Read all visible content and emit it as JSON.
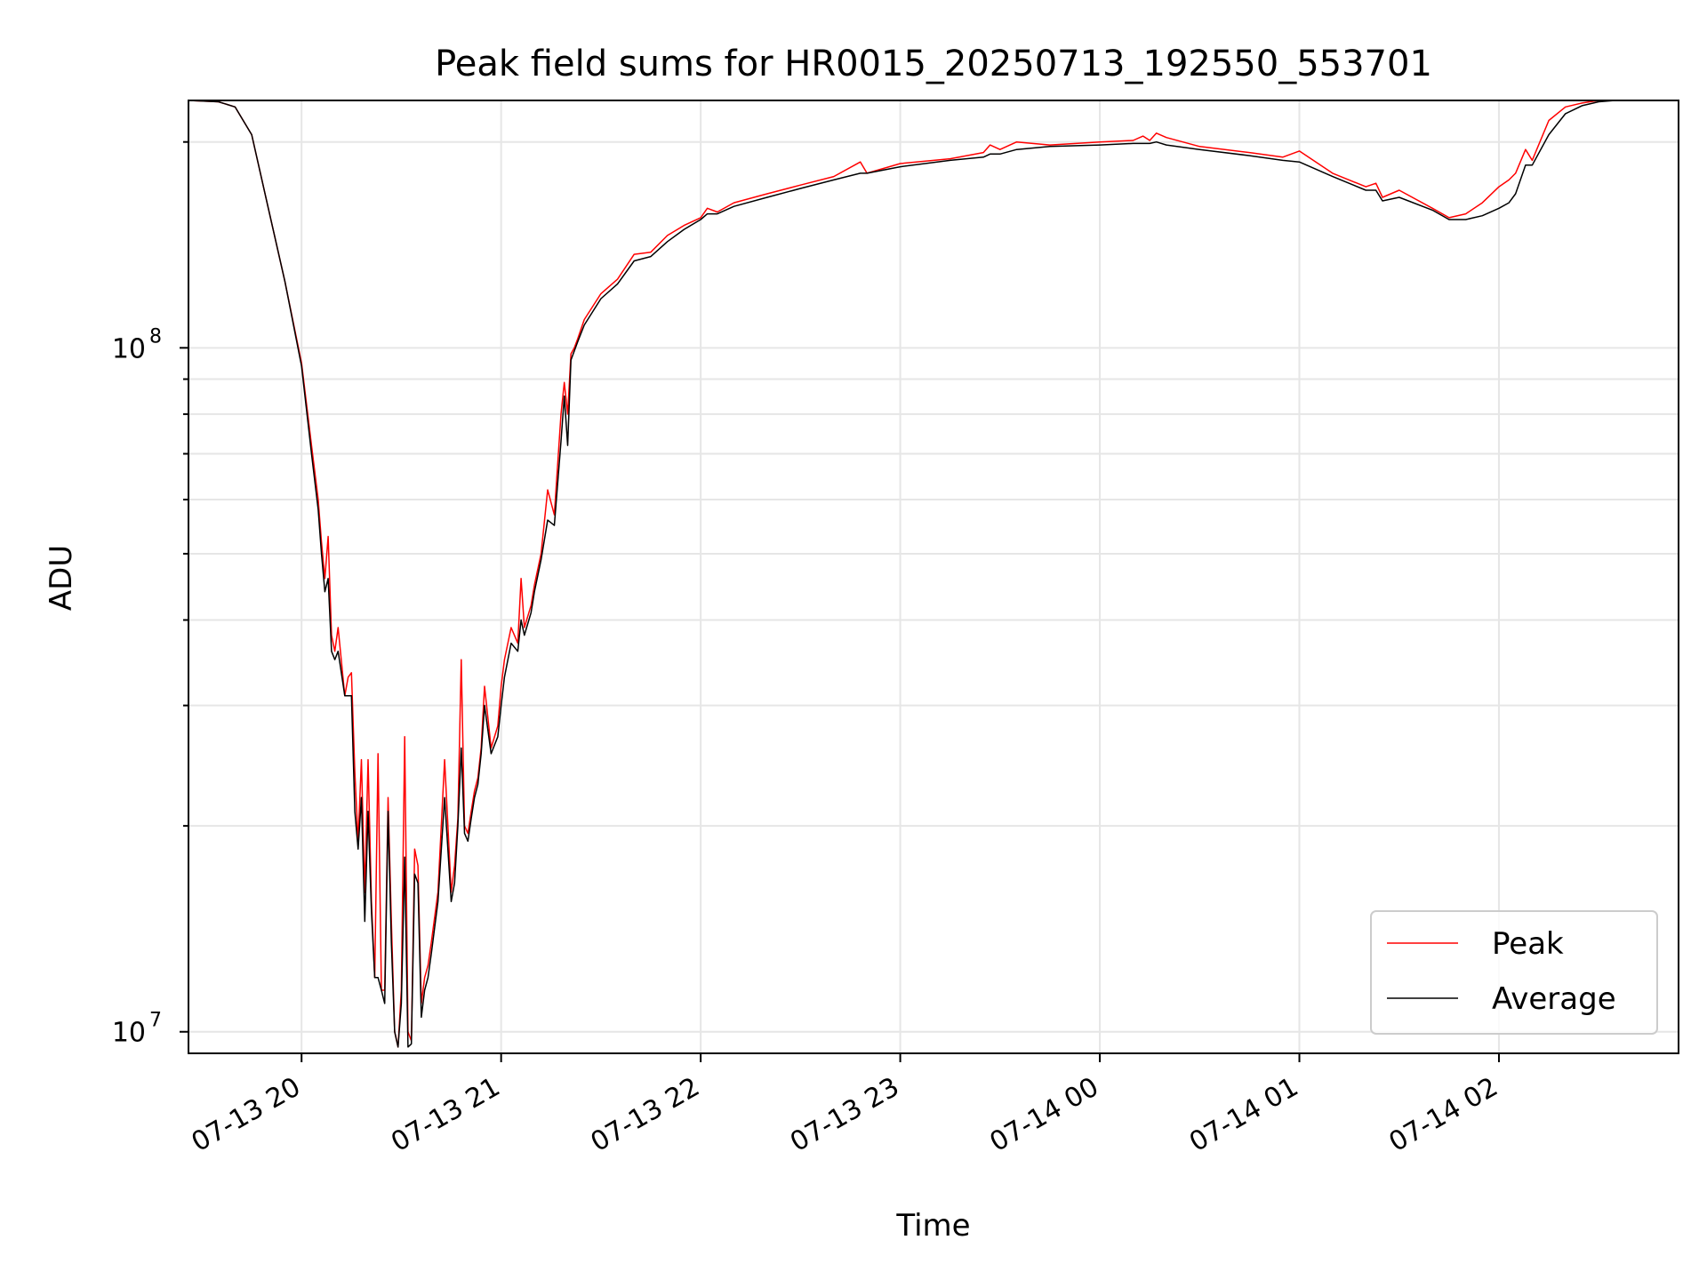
{
  "chart_data": {
    "type": "line",
    "title": "Peak field sums for HR0015_20250713_192550_553701",
    "xlabel": "Time",
    "ylabel": "ADU",
    "yscale": "log",
    "grid": true,
    "legend_position": "bottom-right",
    "xlim": [
      "2025-07-13 19:26",
      "2025-07-14 02:54"
    ],
    "ylim": [
      9300000,
      230000000
    ],
    "x_ticks": [
      "2025-07-13 20:00",
      "2025-07-13 21:00",
      "2025-07-13 22:00",
      "2025-07-13 23:00",
      "2025-07-14 00:00",
      "2025-07-14 01:00",
      "2025-07-14 02:00"
    ],
    "x_tick_labels": [
      "07-13 20",
      "07-13 21",
      "07-13 22",
      "07-13 23",
      "07-14 00",
      "07-14 01",
      "07-14 02"
    ],
    "y_ticks": [
      10000000,
      100000000
    ],
    "y_tick_labels": [
      {
        "base": "10",
        "exp": "7"
      },
      {
        "base": "10",
        "exp": "8"
      }
    ],
    "series": [
      {
        "name": "Peak",
        "color": "#ff0000",
        "x": [
          "2025-07-13 19:26",
          "2025-07-13 19:35",
          "2025-07-13 19:40",
          "2025-07-13 19:45",
          "2025-07-13 19:50",
          "2025-07-13 19:55",
          "2025-07-13 20:00",
          "2025-07-13 20:03",
          "2025-07-13 20:05",
          "2025-07-13 20:06",
          "2025-07-13 20:07",
          "2025-07-13 20:08",
          "2025-07-13 20:09",
          "2025-07-13 20:10",
          "2025-07-13 20:11",
          "2025-07-13 20:13",
          "2025-07-13 20:14",
          "2025-07-13 20:15",
          "2025-07-13 20:16",
          "2025-07-13 20:17",
          "2025-07-13 20:18",
          "2025-07-13 20:19",
          "2025-07-13 20:20",
          "2025-07-13 20:21",
          "2025-07-13 20:22",
          "2025-07-13 20:23",
          "2025-07-13 20:24",
          "2025-07-13 20:25",
          "2025-07-13 20:26",
          "2025-07-13 20:27",
          "2025-07-13 20:28",
          "2025-07-13 20:29",
          "2025-07-13 20:30",
          "2025-07-13 20:31",
          "2025-07-13 20:32",
          "2025-07-13 20:33",
          "2025-07-13 20:34",
          "2025-07-13 20:35",
          "2025-07-13 20:36",
          "2025-07-13 20:37",
          "2025-07-13 20:38",
          "2025-07-13 20:39",
          "2025-07-13 20:41",
          "2025-07-13 20:43",
          "2025-07-13 20:45",
          "2025-07-13 20:46",
          "2025-07-13 20:47",
          "2025-07-13 20:48",
          "2025-07-13 20:49",
          "2025-07-13 20:50",
          "2025-07-13 20:51",
          "2025-07-13 20:52",
          "2025-07-13 20:53",
          "2025-07-13 20:54",
          "2025-07-13 20:55",
          "2025-07-13 20:57",
          "2025-07-13 20:59",
          "2025-07-13 21:00",
          "2025-07-13 21:01",
          "2025-07-13 21:03",
          "2025-07-13 21:05",
          "2025-07-13 21:06",
          "2025-07-13 21:07",
          "2025-07-13 21:09",
          "2025-07-13 21:10",
          "2025-07-13 21:12",
          "2025-07-13 21:14",
          "2025-07-13 21:16",
          "2025-07-13 21:18",
          "2025-07-13 21:19",
          "2025-07-13 21:20",
          "2025-07-13 21:21",
          "2025-07-13 21:22",
          "2025-07-13 21:23",
          "2025-07-13 21:25",
          "2025-07-13 21:30",
          "2025-07-13 21:35",
          "2025-07-13 21:40",
          "2025-07-13 21:45",
          "2025-07-13 21:50",
          "2025-07-13 21:55",
          "2025-07-13 22:00",
          "2025-07-13 22:02",
          "2025-07-13 22:05",
          "2025-07-13 22:10",
          "2025-07-13 22:20",
          "2025-07-13 22:30",
          "2025-07-13 22:40",
          "2025-07-13 22:48",
          "2025-07-13 22:50",
          "2025-07-13 23:00",
          "2025-07-13 23:15",
          "2025-07-13 23:25",
          "2025-07-13 23:27",
          "2025-07-13 23:30",
          "2025-07-13 23:35",
          "2025-07-13 23:45",
          "2025-07-14 00:00",
          "2025-07-14 00:10",
          "2025-07-14 00:13",
          "2025-07-14 00:15",
          "2025-07-14 00:17",
          "2025-07-14 00:20",
          "2025-07-14 00:30",
          "2025-07-14 00:45",
          "2025-07-14 00:55",
          "2025-07-14 01:00",
          "2025-07-14 01:10",
          "2025-07-14 01:20",
          "2025-07-14 01:23",
          "2025-07-14 01:25",
          "2025-07-14 01:30",
          "2025-07-14 01:40",
          "2025-07-14 01:45",
          "2025-07-14 01:50",
          "2025-07-14 01:55",
          "2025-07-14 02:00",
          "2025-07-14 02:03",
          "2025-07-14 02:05",
          "2025-07-14 02:08",
          "2025-07-14 02:10",
          "2025-07-14 02:15",
          "2025-07-14 02:20",
          "2025-07-14 02:25",
          "2025-07-14 02:30",
          "2025-07-14 02:35",
          "2025-07-14 02:40",
          "2025-07-14 02:45",
          "2025-07-14 02:54"
        ],
        "y": [
          230000000,
          229000000,
          225000000,
          205000000,
          160000000,
          125000000,
          95000000,
          72000000,
          60000000,
          52000000,
          46000000,
          53000000,
          38000000,
          36000000,
          39000000,
          31000000,
          33000000,
          33500000,
          24000000,
          19000000,
          25000000,
          16000000,
          25000000,
          15500000,
          12000000,
          25500000,
          11500000,
          11500000,
          22000000,
          14500000,
          10000000,
          9500000,
          11500000,
          27000000,
          10000000,
          9700000,
          18500000,
          17500000,
          11000000,
          12000000,
          12500000,
          13500000,
          16000000,
          25000000,
          16000000,
          17500000,
          20500000,
          35000000,
          20000000,
          19500000,
          21000000,
          22500000,
          23500000,
          26000000,
          32000000,
          26000000,
          28000000,
          32000000,
          35000000,
          39000000,
          37000000,
          46000000,
          39000000,
          42000000,
          45000000,
          50000000,
          62000000,
          57000000,
          80000000,
          89000000,
          80000000,
          98000000,
          100000000,
          103000000,
          110000000,
          120000000,
          126000000,
          137000000,
          138000000,
          146000000,
          151000000,
          155000000,
          160000000,
          158000000,
          163000000,
          168000000,
          173000000,
          178000000,
          187000000,
          180000000,
          186000000,
          189000000,
          193000000,
          198000000,
          195000000,
          200000000,
          198000000,
          200000000,
          201000000,
          204000000,
          201000000,
          206000000,
          203000000,
          197000000,
          193000000,
          190000000,
          194000000,
          180000000,
          172000000,
          174000000,
          166000000,
          170000000,
          160000000,
          155000000,
          157000000,
          163000000,
          172000000,
          176000000,
          180000000,
          195000000,
          188000000,
          215000000,
          225000000,
          228000000,
          230000000,
          231000000,
          231000000,
          232000000,
          232000000
        ]
      },
      {
        "name": "Average",
        "color": "#000000",
        "x": [
          "2025-07-13 19:26",
          "2025-07-13 19:35",
          "2025-07-13 19:40",
          "2025-07-13 19:45",
          "2025-07-13 19:50",
          "2025-07-13 19:55",
          "2025-07-13 20:00",
          "2025-07-13 20:03",
          "2025-07-13 20:05",
          "2025-07-13 20:06",
          "2025-07-13 20:07",
          "2025-07-13 20:08",
          "2025-07-13 20:09",
          "2025-07-13 20:10",
          "2025-07-13 20:11",
          "2025-07-13 20:13",
          "2025-07-13 20:14",
          "2025-07-13 20:15",
          "2025-07-13 20:16",
          "2025-07-13 20:17",
          "2025-07-13 20:18",
          "2025-07-13 20:19",
          "2025-07-13 20:20",
          "2025-07-13 20:21",
          "2025-07-13 20:22",
          "2025-07-13 20:23",
          "2025-07-13 20:24",
          "2025-07-13 20:25",
          "2025-07-13 20:26",
          "2025-07-13 20:27",
          "2025-07-13 20:28",
          "2025-07-13 20:29",
          "2025-07-13 20:30",
          "2025-07-13 20:31",
          "2025-07-13 20:32",
          "2025-07-13 20:33",
          "2025-07-13 20:34",
          "2025-07-13 20:35",
          "2025-07-13 20:36",
          "2025-07-13 20:37",
          "2025-07-13 20:38",
          "2025-07-13 20:39",
          "2025-07-13 20:41",
          "2025-07-13 20:43",
          "2025-07-13 20:45",
          "2025-07-13 20:46",
          "2025-07-13 20:47",
          "2025-07-13 20:48",
          "2025-07-13 20:49",
          "2025-07-13 20:50",
          "2025-07-13 20:51",
          "2025-07-13 20:52",
          "2025-07-13 20:53",
          "2025-07-13 20:54",
          "2025-07-13 20:55",
          "2025-07-13 20:57",
          "2025-07-13 20:59",
          "2025-07-13 21:00",
          "2025-07-13 21:01",
          "2025-07-13 21:03",
          "2025-07-13 21:05",
          "2025-07-13 21:06",
          "2025-07-13 21:07",
          "2025-07-13 21:09",
          "2025-07-13 21:10",
          "2025-07-13 21:12",
          "2025-07-13 21:14",
          "2025-07-13 21:16",
          "2025-07-13 21:18",
          "2025-07-13 21:19",
          "2025-07-13 21:20",
          "2025-07-13 21:21",
          "2025-07-13 21:22",
          "2025-07-13 21:23",
          "2025-07-13 21:25",
          "2025-07-13 21:30",
          "2025-07-13 21:35",
          "2025-07-13 21:40",
          "2025-07-13 21:45",
          "2025-07-13 21:50",
          "2025-07-13 21:55",
          "2025-07-13 22:00",
          "2025-07-13 22:02",
          "2025-07-13 22:05",
          "2025-07-13 22:10",
          "2025-07-13 22:20",
          "2025-07-13 22:30",
          "2025-07-13 22:40",
          "2025-07-13 22:48",
          "2025-07-13 22:50",
          "2025-07-13 23:00",
          "2025-07-13 23:15",
          "2025-07-13 23:25",
          "2025-07-13 23:27",
          "2025-07-13 23:30",
          "2025-07-13 23:35",
          "2025-07-13 23:45",
          "2025-07-14 00:00",
          "2025-07-14 00:10",
          "2025-07-14 00:13",
          "2025-07-14 00:15",
          "2025-07-14 00:17",
          "2025-07-14 00:20",
          "2025-07-14 00:30",
          "2025-07-14 00:45",
          "2025-07-14 00:55",
          "2025-07-14 01:00",
          "2025-07-14 01:10",
          "2025-07-14 01:20",
          "2025-07-14 01:23",
          "2025-07-14 01:25",
          "2025-07-14 01:30",
          "2025-07-14 01:40",
          "2025-07-14 01:45",
          "2025-07-14 01:50",
          "2025-07-14 01:55",
          "2025-07-14 02:00",
          "2025-07-14 02:03",
          "2025-07-14 02:05",
          "2025-07-14 02:08",
          "2025-07-14 02:10",
          "2025-07-14 02:15",
          "2025-07-14 02:20",
          "2025-07-14 02:25",
          "2025-07-14 02:30",
          "2025-07-14 02:35",
          "2025-07-14 02:40",
          "2025-07-14 02:45",
          "2025-07-14 02:54"
        ],
        "y": [
          230000000,
          229000000,
          225000000,
          205000000,
          160000000,
          125000000,
          94000000,
          70000000,
          58000000,
          50000000,
          44000000,
          46000000,
          36000000,
          35000000,
          36000000,
          31000000,
          31000000,
          31000000,
          21000000,
          18500000,
          22000000,
          14500000,
          21000000,
          15000000,
          12000000,
          12000000,
          11500000,
          11000000,
          21000000,
          13500000,
          10000000,
          9500000,
          11000000,
          18000000,
          9500000,
          9600000,
          17000000,
          16500000,
          10500000,
          11500000,
          12000000,
          13000000,
          15500000,
          22000000,
          15500000,
          16500000,
          20000000,
          26000000,
          19500000,
          19000000,
          20500000,
          22000000,
          23000000,
          25500000,
          30000000,
          25500000,
          27000000,
          30000000,
          33000000,
          37000000,
          36000000,
          40000000,
          38000000,
          41000000,
          44000000,
          49000000,
          56000000,
          55000000,
          73000000,
          85000000,
          72000000,
          96000000,
          99000000,
          102000000,
          108000000,
          118000000,
          124000000,
          134000000,
          136000000,
          143000000,
          149000000,
          154000000,
          157000000,
          157000000,
          161000000,
          166000000,
          171000000,
          176000000,
          180000000,
          180000000,
          184000000,
          188000000,
          190000000,
          192000000,
          192000000,
          195000000,
          197000000,
          198000000,
          199000000,
          199000000,
          199000000,
          200000000,
          198000000,
          195000000,
          191000000,
          188000000,
          187000000,
          178000000,
          170000000,
          170000000,
          164000000,
          166000000,
          159000000,
          154000000,
          154000000,
          156000000,
          160000000,
          163000000,
          168000000,
          185000000,
          185000000,
          205000000,
          220000000,
          226000000,
          229000000,
          230000000,
          231000000,
          232000000,
          232000000
        ]
      }
    ]
  }
}
